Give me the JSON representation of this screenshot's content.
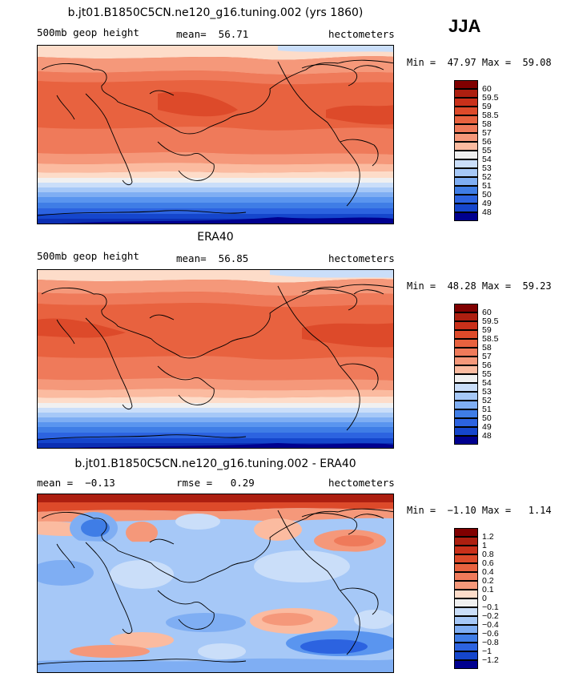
{
  "season": "JJA",
  "palette_full": [
    "#00008f",
    "#0b2fb3",
    "#1546cc",
    "#2c63e0",
    "#3f7de6",
    "#5a95ef",
    "#7faef3",
    "#a6c8f7",
    "#cadef9",
    "#f0f0f0",
    "#fddcc9",
    "#fbbba0",
    "#f5987a",
    "#ef7a5a",
    "#e8623f",
    "#dd4a2a",
    "#c9301a",
    "#ad1f10",
    "#800000"
  ],
  "panels": [
    {
      "title": "b.jt01.B1850C5CN.ne120_g16.tuning.002 (yrs 1860)",
      "left_label": "500mb geop height",
      "center_label": "mean=  56.71",
      "right_label": "hectometers",
      "minmax": "Min =  47.97 Max =  59.08",
      "levels": [
        "60",
        "59.5",
        "59",
        "58.5",
        "58",
        "57",
        "56",
        "55",
        "54",
        "53",
        "52",
        "51",
        "50",
        "49",
        "48"
      ]
    },
    {
      "title": "ERA40",
      "left_label": "500mb geop height",
      "center_label": "mean=  56.85",
      "right_label": "hectometers",
      "minmax": "Min =  48.28 Max =  59.23",
      "levels": [
        "60",
        "59.5",
        "59",
        "58.5",
        "58",
        "57",
        "56",
        "55",
        "54",
        "53",
        "52",
        "51",
        "50",
        "49",
        "48"
      ]
    },
    {
      "title": "b.jt01.B1850C5CN.ne120_g16.tuning.002 - ERA40",
      "left_label": "mean =  −0.13",
      "center_label": "rmse =   0.29",
      "right_label": "hectometers",
      "minmax": "Min =  −1.10 Max =   1.14",
      "levels": [
        "1.2",
        "1",
        "0.8",
        "0.6",
        "0.4",
        "0.2",
        "0.1",
        "0",
        "−0.1",
        "−0.2",
        "−0.4",
        "−0.6",
        "−0.8",
        "−1",
        "−1.2"
      ]
    }
  ]
}
